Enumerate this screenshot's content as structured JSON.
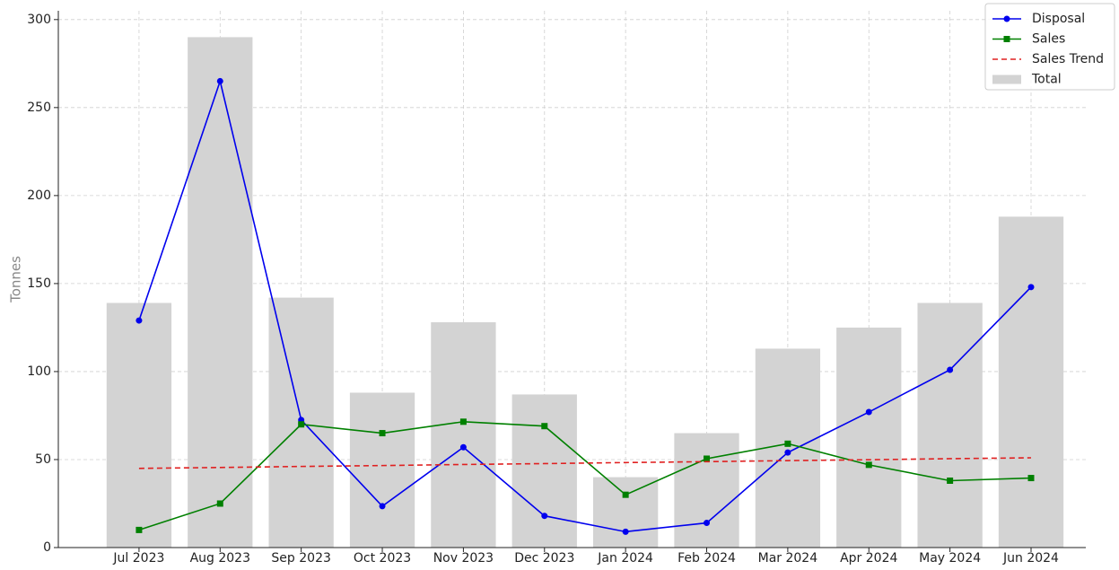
{
  "chart_data": {
    "type": "combo",
    "ylabel": "Tonnes",
    "categories": [
      "Jul 2023",
      "Aug 2023",
      "Sep 2023",
      "Oct 2023",
      "Nov 2023",
      "Dec 2023",
      "Jan 2024",
      "Feb 2024",
      "Mar 2024",
      "Apr 2024",
      "May 2024",
      "Jun 2024"
    ],
    "series": [
      {
        "name": "Total",
        "kind": "bar",
        "color": "#d3d3d3",
        "values": [
          139,
          290,
          142,
          88,
          128,
          87,
          40,
          65,
          113,
          125,
          139,
          188
        ]
      },
      {
        "name": "Disposal",
        "kind": "line",
        "marker": "circle",
        "color": "#0000ee",
        "values": [
          129,
          265,
          72.5,
          23.5,
          57,
          18,
          9,
          14,
          54,
          77,
          101,
          148
        ]
      },
      {
        "name": "Sales",
        "kind": "line",
        "marker": "square",
        "color": "#008000",
        "values": [
          10,
          25,
          70,
          65,
          71.5,
          69,
          30,
          50.5,
          59,
          47,
          38,
          39.5
        ]
      },
      {
        "name": "Sales Trend",
        "kind": "dashed",
        "color": "#e02020",
        "values": [
          45,
          45.5,
          46.1,
          46.6,
          47.2,
          47.7,
          48.3,
          48.8,
          49.4,
          49.9,
          50.5,
          51
        ]
      }
    ],
    "legend_order": [
      1,
      2,
      3,
      0
    ],
    "ylim": [
      0,
      305
    ],
    "yticks": [
      0,
      50,
      100,
      150,
      200,
      250,
      300
    ],
    "grid": true,
    "legend": "upper right"
  }
}
